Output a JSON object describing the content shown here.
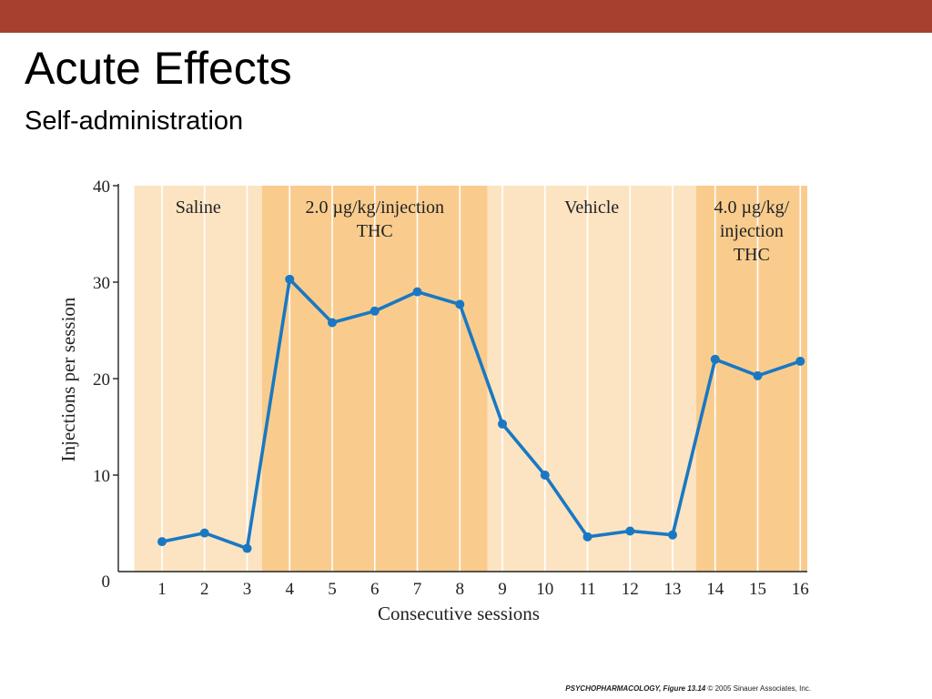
{
  "slide": {
    "title": "Acute Effects",
    "subtitle": "Self-administration",
    "top_bar_color": "#A7402E",
    "credit_source": "PSYCHOPHARMACOLOGY, Figure 13.14",
    "credit_copyright": "© 2005 Sinauer Associates, Inc."
  },
  "chart_data": {
    "type": "line",
    "xlabel": "Consecutive sessions",
    "ylabel": "Injections per session",
    "x": [
      1,
      2,
      3,
      4,
      5,
      6,
      7,
      8,
      9,
      10,
      11,
      12,
      13,
      14,
      15,
      16
    ],
    "series": [
      {
        "values": [
          3.1,
          4.0,
          2.4,
          30.3,
          25.8,
          27.0,
          29.0,
          27.7,
          15.3,
          10.0,
          3.6,
          4.2,
          3.8,
          22.0,
          20.3,
          21.8
        ]
      }
    ],
    "yticks": [
      0,
      10,
      20,
      30,
      40
    ],
    "ylim": [
      0,
      40
    ],
    "xlim": [
      0.35,
      16.2
    ],
    "grid": "vertical",
    "line_color": "#1A78C2",
    "phases": [
      {
        "label_lines": [
          "Saline"
        ],
        "from": 0.35,
        "to": 3.35,
        "color": "#FCE4C2"
      },
      {
        "label_lines": [
          "2.0 µg/kg/injection",
          "THC"
        ],
        "from": 3.35,
        "to": 8.65,
        "color": "#F9CC8E"
      },
      {
        "label_lines": [
          "Vehicle"
        ],
        "from": 8.65,
        "to": 13.55,
        "color": "#FCE4C2"
      },
      {
        "label_lines": [
          "4.0 µg/kg/",
          "injection",
          "THC"
        ],
        "from": 13.55,
        "to": 16.2,
        "color": "#F9CC8E"
      }
    ]
  }
}
